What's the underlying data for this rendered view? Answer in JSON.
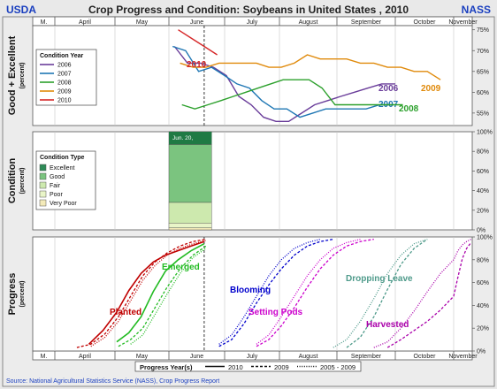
{
  "header": {
    "left": "USDA",
    "right": "NASS",
    "title": "Crop Progress and Condition: Soybeans in United States , 2010"
  },
  "months_top": [
    "M.",
    "April",
    "May",
    "June",
    "July",
    "August",
    "September",
    "October",
    "November"
  ],
  "months_bottom": [
    "M.",
    "April",
    "May",
    "June",
    "July",
    "August",
    "September",
    "October",
    "November"
  ],
  "source": "Source: National Agricultural Statistics Service (NASS), Crop Progress Report",
  "colors": {
    "y2006": "#6a3d9a",
    "y2007": "#1f77b4",
    "y2008": "#2ca02c",
    "y2009": "#e08a0b",
    "y2010": "#d62728",
    "progress": [
      "#c00000",
      "#22bb22",
      "#0000cc",
      "#cc00cc",
      "#4e9a8a",
      "#aa00aa"
    ]
  },
  "chart_data": [
    {
      "type": "line",
      "ylabel": "Good + Excellent",
      "ylabel_unit": "(percent)",
      "ylim": [
        52,
        76
      ],
      "yticks": [
        "55%",
        "60%",
        "65%",
        "70%",
        "75%"
      ],
      "legend_title": "Condition Year",
      "legend_position": "top-left",
      "series": [
        {
          "name": "2006",
          "label": "2006",
          "color": "#6a3d9a",
          "x": [
            "2006-06-04",
            "2006-06-11",
            "2006-06-18",
            "2006-06-25",
            "2006-07-02",
            "2006-07-09",
            "2006-07-16",
            "2006-07-23",
            "2006-07-30",
            "2006-08-06",
            "2006-08-13",
            "2006-08-20",
            "2006-08-27",
            "2006-09-03",
            "2006-09-10",
            "2006-09-17",
            "2006-09-24",
            "2006-10-01"
          ],
          "values": [
            71,
            67,
            67,
            66,
            64,
            59,
            57,
            54,
            53,
            53,
            55,
            57,
            58,
            59,
            60,
            61,
            62,
            62
          ]
        },
        {
          "name": "2007",
          "label": "2007",
          "color": "#1f77b4",
          "x": [
            "2007-06-03",
            "2007-06-10",
            "2007-06-17",
            "2007-06-24",
            "2007-07-01",
            "2007-07-08",
            "2007-07-15",
            "2007-07-22",
            "2007-07-29",
            "2007-08-05",
            "2007-08-12",
            "2007-08-19",
            "2007-08-26",
            "2007-09-02",
            "2007-09-09",
            "2007-09-16",
            "2007-09-23",
            "2007-09-30"
          ],
          "values": [
            71,
            70,
            65,
            66,
            64,
            62,
            61,
            58,
            56,
            56,
            54,
            55,
            56,
            56,
            56,
            56,
            57,
            57
          ]
        },
        {
          "name": "2008",
          "label": "2008",
          "color": "#2ca02c",
          "x": [
            "2008-06-08",
            "2008-06-15",
            "2008-06-22",
            "2008-06-29",
            "2008-07-06",
            "2008-07-13",
            "2008-07-20",
            "2008-07-27",
            "2008-08-03",
            "2008-08-10",
            "2008-08-17",
            "2008-08-24",
            "2008-08-31",
            "2008-09-07",
            "2008-09-14",
            "2008-09-21",
            "2008-09-28",
            "2008-10-05"
          ],
          "values": [
            57,
            56,
            57,
            58,
            59,
            60,
            61,
            62,
            63,
            63,
            63,
            61,
            57,
            57,
            57,
            57,
            57,
            57
          ]
        },
        {
          "name": "2009",
          "label": "2009",
          "color": "#e08a0b",
          "x": [
            "2009-06-07",
            "2009-06-14",
            "2009-06-21",
            "2009-06-28",
            "2009-07-05",
            "2009-07-12",
            "2009-07-19",
            "2009-07-26",
            "2009-08-02",
            "2009-08-09",
            "2009-08-16",
            "2009-08-23",
            "2009-08-30",
            "2009-09-06",
            "2009-09-13",
            "2009-09-20",
            "2009-09-27",
            "2009-10-04",
            "2009-10-11",
            "2009-10-18",
            "2009-10-25"
          ],
          "values": [
            67,
            66,
            66,
            67,
            67,
            67,
            67,
            66,
            66,
            67,
            69,
            68,
            68,
            68,
            67,
            67,
            66,
            66,
            65,
            65,
            63
          ]
        },
        {
          "name": "2010",
          "label": "2010",
          "color": "#d62728",
          "x": [
            "2010-06-06",
            "2010-06-13",
            "2010-06-20",
            "2010-06-27"
          ],
          "values": [
            75,
            73,
            71,
            69
          ]
        }
      ]
    },
    {
      "type": "area",
      "ylabel": "Condition",
      "ylabel_unit": "(percent)",
      "ylim": [
        0,
        100
      ],
      "yticks": [
        "0%",
        "20%",
        "40%",
        "60%",
        "80%",
        "100%"
      ],
      "legend_title": "Condition Type",
      "legend_position": "top-left",
      "annotation": "Jun. 20,",
      "x_range": [
        "2010-06-01",
        "2010-06-24"
      ],
      "series": [
        {
          "name": "Very Poor",
          "color": "#f3eab9",
          "value": 2
        },
        {
          "name": "Poor",
          "color": "#e9f5c8",
          "value": 5
        },
        {
          "name": "Fair",
          "color": "#cde9ae",
          "value": 21
        },
        {
          "name": "Good",
          "color": "#7bc47f",
          "value": 59
        },
        {
          "name": "Excellent",
          "color": "#2e8b57",
          "value": 13
        }
      ]
    },
    {
      "type": "line",
      "ylabel": "Progress",
      "ylabel_unit": "(percent)",
      "ylim": [
        0,
        100
      ],
      "yticks": [
        "0%",
        "20%",
        "40%",
        "60%",
        "80%",
        "100%"
      ],
      "legend_title": "Progress Year(s)",
      "legend_items": [
        {
          "name": "2010",
          "style": "solid"
        },
        {
          "name": "2009",
          "style": "dashed"
        },
        {
          "name": "2005 - 2009",
          "style": "dotted"
        }
      ],
      "annotations": [
        {
          "text": "Planted",
          "color": "#c00000"
        },
        {
          "text": "Emerged",
          "color": "#22bb22"
        },
        {
          "text": "Blooming",
          "color": "#0000cc"
        },
        {
          "text": "Setting Pods",
          "color": "#cc00cc"
        },
        {
          "text": "Dropping Leave",
          "color": "#4e9a8a"
        },
        {
          "text": "Harvested",
          "color": "#aa00aa"
        }
      ],
      "series": [
        {
          "name": "Planted 2010",
          "color": "#c00000",
          "style": "solid",
          "x": [
            "2010-04-18",
            "2010-04-25",
            "2010-05-02",
            "2010-05-09",
            "2010-05-16",
            "2010-05-23",
            "2010-05-30",
            "2010-06-06",
            "2010-06-13",
            "2010-06-20"
          ],
          "values": [
            6,
            18,
            34,
            53,
            68,
            78,
            84,
            88,
            92,
            96
          ]
        },
        {
          "name": "Planted 2009",
          "color": "#c00000",
          "style": "dashed",
          "x": [
            "2009-04-12",
            "2009-04-19",
            "2009-04-26",
            "2009-05-03",
            "2009-05-10",
            "2009-05-17",
            "2009-05-24",
            "2009-05-31",
            "2009-06-07",
            "2009-06-14",
            "2009-06-21"
          ],
          "values": [
            3,
            6,
            15,
            30,
            48,
            66,
            78,
            86,
            92,
            96,
            98
          ]
        },
        {
          "name": "Planted 2005 - 2009",
          "color": "#c00000",
          "style": "dotted",
          "x": [
            "2009-04-19",
            "2009-04-26",
            "2009-05-03",
            "2009-05-10",
            "2009-05-17",
            "2009-05-24",
            "2009-05-31",
            "2009-06-07",
            "2009-06-14",
            "2009-06-21"
          ],
          "values": [
            4,
            12,
            26,
            44,
            62,
            75,
            84,
            90,
            94,
            97
          ]
        },
        {
          "name": "Emerged 2010",
          "color": "#22bb22",
          "style": "solid",
          "x": [
            "2010-05-02",
            "2010-05-09",
            "2010-05-16",
            "2010-05-23",
            "2010-05-30",
            "2010-06-06",
            "2010-06-13",
            "2010-06-20"
          ],
          "values": [
            8,
            16,
            30,
            52,
            70,
            80,
            88,
            94
          ]
        },
        {
          "name": "Emerged 2009",
          "color": "#22bb22",
          "style": "dashed",
          "x": [
            "2009-05-03",
            "2009-05-10",
            "2009-05-17",
            "2009-05-24",
            "2009-05-31",
            "2009-06-07",
            "2009-06-14",
            "2009-06-21"
          ],
          "values": [
            4,
            10,
            20,
            38,
            56,
            72,
            84,
            92
          ]
        },
        {
          "name": "Emerged 2005 - 2009",
          "color": "#22bb22",
          "style": "dotted",
          "x": [
            "2009-05-10",
            "2009-05-17",
            "2009-05-24",
            "2009-05-31",
            "2009-06-07",
            "2009-06-14",
            "2009-06-21"
          ],
          "values": [
            6,
            14,
            32,
            50,
            68,
            82,
            90
          ]
        },
        {
          "name": "Blooming 2009",
          "color": "#0000cc",
          "style": "dashed",
          "x": [
            "2009-06-28",
            "2009-07-05",
            "2009-07-12",
            "2009-07-19",
            "2009-07-26",
            "2009-08-02",
            "2009-08-09",
            "2009-08-16",
            "2009-08-23",
            "2009-08-30"
          ],
          "values": [
            4,
            10,
            24,
            42,
            58,
            72,
            84,
            92,
            96,
            98
          ]
        },
        {
          "name": "Blooming 2005 - 2009",
          "color": "#0000cc",
          "style": "dotted",
          "x": [
            "2009-06-28",
            "2009-07-05",
            "2009-07-12",
            "2009-07-19",
            "2009-07-26",
            "2009-08-02",
            "2009-08-09",
            "2009-08-16",
            "2009-08-23"
          ],
          "values": [
            6,
            14,
            30,
            48,
            66,
            80,
            90,
            95,
            98
          ]
        },
        {
          "name": "Setting Pods 2009",
          "color": "#cc00cc",
          "style": "dashed",
          "x": [
            "2009-07-19",
            "2009-07-26",
            "2009-08-02",
            "2009-08-09",
            "2009-08-16",
            "2009-08-23",
            "2009-08-30",
            "2009-09-06",
            "2009-09-13",
            "2009-09-20"
          ],
          "values": [
            4,
            10,
            22,
            38,
            56,
            72,
            84,
            92,
            96,
            98
          ]
        },
        {
          "name": "Setting Pods 2005 - 2009",
          "color": "#cc00cc",
          "style": "dotted",
          "x": [
            "2009-07-19",
            "2009-07-26",
            "2009-08-02",
            "2009-08-09",
            "2009-08-16",
            "2009-08-23",
            "2009-08-30",
            "2009-09-06",
            "2009-09-13"
          ],
          "values": [
            6,
            14,
            30,
            48,
            66,
            80,
            90,
            95,
            98
          ]
        },
        {
          "name": "Dropping Leave 2009",
          "color": "#4e9a8a",
          "style": "dashed",
          "x": [
            "2009-09-06",
            "2009-09-13",
            "2009-09-20",
            "2009-09-27",
            "2009-10-04",
            "2009-10-11",
            "2009-10-18"
          ],
          "values": [
            3,
            12,
            30,
            54,
            76,
            90,
            98
          ]
        },
        {
          "name": "Dropping Leave 2005 - 2009",
          "color": "#4e9a8a",
          "style": "dotted",
          "x": [
            "2009-08-30",
            "2009-09-06",
            "2009-09-13",
            "2009-09-20",
            "2009-09-27",
            "2009-10-04",
            "2009-10-11",
            "2009-10-18"
          ],
          "values": [
            3,
            10,
            26,
            46,
            68,
            84,
            94,
            98
          ]
        },
        {
          "name": "Harvested 2009",
          "color": "#aa00aa",
          "style": "dashed",
          "x": [
            "2009-09-27",
            "2009-10-04",
            "2009-10-11",
            "2009-10-18",
            "2009-10-25",
            "2009-11-01",
            "2009-11-08",
            "2009-11-15",
            "2009-11-22",
            "2009-11-29"
          ],
          "values": [
            3,
            10,
            18,
            26,
            36,
            48,
            65,
            81,
            90,
            95
          ]
        },
        {
          "name": "Harvested 2005 - 2009",
          "color": "#aa00aa",
          "style": "dotted",
          "x": [
            "2009-09-20",
            "2009-09-27",
            "2009-10-04",
            "2009-10-11",
            "2009-10-18",
            "2009-10-25",
            "2009-11-01",
            "2009-11-08",
            "2009-11-15",
            "2009-11-22",
            "2009-11-29"
          ],
          "values": [
            3,
            8,
            20,
            35,
            52,
            68,
            80,
            88,
            93,
            96,
            98
          ]
        }
      ]
    }
  ]
}
